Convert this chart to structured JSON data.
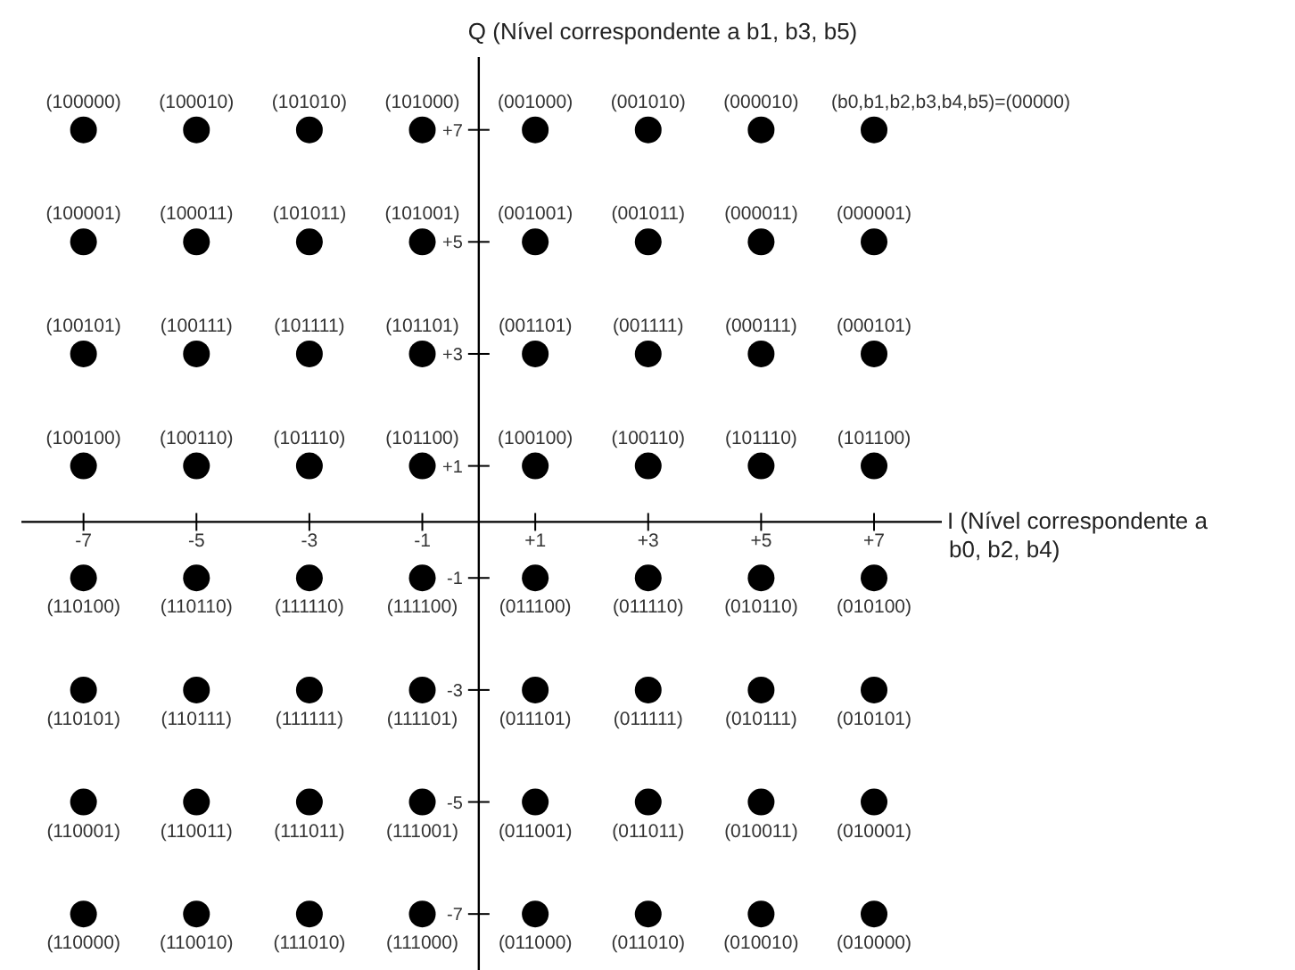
{
  "chart_data": {
    "type": "scatter",
    "xlabel": "I (Nível correspondente a b0, b2, b4)",
    "ylabel": "Q (Nível correspondente a b1, b3, b5)",
    "xlim": [
      -8.1,
      8.2
    ],
    "ylim": [
      -8,
      8.3
    ],
    "xticks": [
      -7,
      -5,
      -3,
      -1,
      {
        "value": 1,
        "label": "+1"
      },
      {
        "value": 3,
        "label": "+3"
      },
      {
        "value": 5,
        "label": "+5"
      },
      {
        "value": 7,
        "label": "+7"
      }
    ],
    "yticks": [
      -7,
      -5,
      -3,
      -1,
      {
        "value": 1,
        "label": "+1"
      },
      {
        "value": 3,
        "label": "+3"
      },
      {
        "value": 5,
        "label": "+5"
      },
      {
        "value": 7,
        "label": "+7"
      }
    ],
    "grid": false,
    "marker": "circle",
    "series": [
      {
        "color": "#000000",
        "x": [
          -7,
          -5,
          -3,
          -1,
          1,
          3,
          5,
          7,
          -7,
          -5,
          -3,
          -1,
          1,
          3,
          5,
          7,
          -7,
          -5,
          -3,
          -1,
          1,
          3,
          5,
          7,
          -7,
          -5,
          -3,
          -1,
          1,
          3,
          5,
          7,
          -7,
          -5,
          -3,
          -1,
          1,
          3,
          5,
          7,
          -7,
          -5,
          -3,
          -1,
          1,
          3,
          5,
          7,
          -7,
          -5,
          -3,
          -1,
          1,
          3,
          5,
          7,
          -7,
          -5,
          -3,
          -1,
          1,
          3,
          5,
          7
        ],
        "values": [
          7,
          7,
          7,
          7,
          7,
          7,
          7,
          7,
          5,
          5,
          5,
          5,
          5,
          5,
          5,
          5,
          3,
          3,
          3,
          3,
          3,
          3,
          3,
          3,
          1,
          1,
          1,
          1,
          1,
          1,
          1,
          1,
          -1,
          -1,
          -1,
          -1,
          -1,
          -1,
          -1,
          -1,
          -3,
          -3,
          -3,
          -3,
          -3,
          -3,
          -3,
          -3,
          -5,
          -5,
          -5,
          -5,
          -5,
          -5,
          -5,
          -5,
          -7,
          -7,
          -7,
          -7,
          -7,
          -7,
          -7,
          -7
        ]
      }
    ],
    "annotations": [
      {
        "text": "(100000)",
        "x": -7,
        "y": 7
      },
      {
        "text": "(100010)",
        "x": -5,
        "y": 7
      },
      {
        "text": "(101010)",
        "x": -3,
        "y": 7
      },
      {
        "text": "(101000)",
        "x": -1,
        "y": 7
      },
      {
        "text": "(001000)",
        "x": 1,
        "y": 7
      },
      {
        "text": "(001010)",
        "x": 3,
        "y": 7
      },
      {
        "text": "(000010)",
        "x": 5,
        "y": 7
      },
      {
        "text": "(b0,b1,b2,b3,b4,b5)=(00000)",
        "x": 7,
        "y": 7
      },
      {
        "text": "(100001)",
        "x": -7,
        "y": 5
      },
      {
        "text": "(100011)",
        "x": -5,
        "y": 5
      },
      {
        "text": "(101011)",
        "x": -3,
        "y": 5
      },
      {
        "text": "(101001)",
        "x": -1,
        "y": 5
      },
      {
        "text": "(001001)",
        "x": 1,
        "y": 5
      },
      {
        "text": "(001011)",
        "x": 3,
        "y": 5
      },
      {
        "text": "(000011)",
        "x": 5,
        "y": 5
      },
      {
        "text": "(000001)",
        "x": 7,
        "y": 5
      },
      {
        "text": "(100101)",
        "x": -7,
        "y": 3
      },
      {
        "text": "(100111)",
        "x": -5,
        "y": 3
      },
      {
        "text": "(101111)",
        "x": -3,
        "y": 3
      },
      {
        "text": "(101101)",
        "x": -1,
        "y": 3
      },
      {
        "text": "(001101)",
        "x": 1,
        "y": 3
      },
      {
        "text": "(001111)",
        "x": 3,
        "y": 3
      },
      {
        "text": "(000111)",
        "x": 5,
        "y": 3
      },
      {
        "text": "(000101)",
        "x": 7,
        "y": 3
      },
      {
        "text": "(100100)",
        "x": -7,
        "y": 1
      },
      {
        "text": "(100110)",
        "x": -5,
        "y": 1
      },
      {
        "text": "(101110)",
        "x": -3,
        "y": 1
      },
      {
        "text": "(101100)",
        "x": -1,
        "y": 1
      },
      {
        "text": "(100100)",
        "x": 1,
        "y": 1
      },
      {
        "text": "(100110)",
        "x": 3,
        "y": 1
      },
      {
        "text": "(101110)",
        "x": 5,
        "y": 1
      },
      {
        "text": "(101100)",
        "x": 7,
        "y": 1
      },
      {
        "text": "(110100)",
        "x": -7,
        "y": -1
      },
      {
        "text": "(110110)",
        "x": -5,
        "y": -1
      },
      {
        "text": "(111110)",
        "x": -3,
        "y": -1
      },
      {
        "text": "(111100)",
        "x": -1,
        "y": -1
      },
      {
        "text": "(011100)",
        "x": 1,
        "y": -1
      },
      {
        "text": "(011110)",
        "x": 3,
        "y": -1
      },
      {
        "text": "(010110)",
        "x": 5,
        "y": -1
      },
      {
        "text": "(010100)",
        "x": 7,
        "y": -1
      },
      {
        "text": "(110101)",
        "x": -7,
        "y": -3
      },
      {
        "text": "(110111)",
        "x": -5,
        "y": -3
      },
      {
        "text": "(111111)",
        "x": -3,
        "y": -3
      },
      {
        "text": "(111101)",
        "x": -1,
        "y": -3
      },
      {
        "text": "(011101)",
        "x": 1,
        "y": -3
      },
      {
        "text": "(011111)",
        "x": 3,
        "y": -3
      },
      {
        "text": "(010111)",
        "x": 5,
        "y": -3
      },
      {
        "text": "(010101)",
        "x": 7,
        "y": -3
      },
      {
        "text": "(110001)",
        "x": -7,
        "y": -5
      },
      {
        "text": "(110011)",
        "x": -5,
        "y": -5
      },
      {
        "text": "(111011)",
        "x": -3,
        "y": -5
      },
      {
        "text": "(111001)",
        "x": -1,
        "y": -5
      },
      {
        "text": "(011001)",
        "x": 1,
        "y": -5
      },
      {
        "text": "(011011)",
        "x": 3,
        "y": -5
      },
      {
        "text": "(010011)",
        "x": 5,
        "y": -5
      },
      {
        "text": "(010001)",
        "x": 7,
        "y": -5
      },
      {
        "text": "(110000)",
        "x": -7,
        "y": -7
      },
      {
        "text": "(110010)",
        "x": -5,
        "y": -7
      },
      {
        "text": "(111010)",
        "x": -3,
        "y": -7
      },
      {
        "text": "(111000)",
        "x": -1,
        "y": -7
      },
      {
        "text": "(011000)",
        "x": 1,
        "y": -7
      },
      {
        "text": "(011010)",
        "x": 3,
        "y": -7
      },
      {
        "text": "(010010)",
        "x": 5,
        "y": -7
      },
      {
        "text": "(010000)",
        "x": 7,
        "y": -7
      }
    ]
  }
}
